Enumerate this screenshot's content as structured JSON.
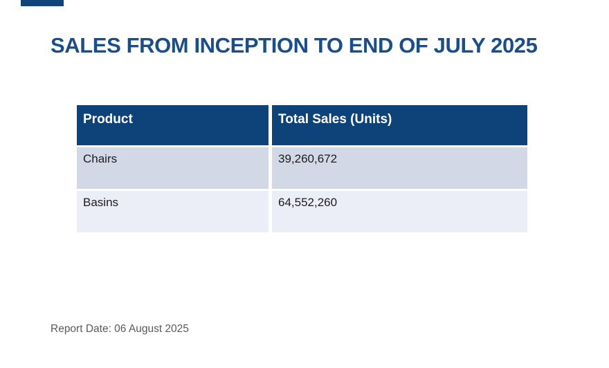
{
  "page": {
    "title": "SALES FROM INCEPTION TO END OF JULY 2025",
    "report_date": "Report Date: 06 August 2025"
  },
  "table": {
    "columns": [
      "Product",
      "Total Sales (Units)"
    ],
    "rows": [
      {
        "product": "Chairs",
        "total_sales": "39,260,672"
      },
      {
        "product": "Basins",
        "total_sales": "64,552,260"
      }
    ]
  },
  "colors": {
    "title_text": "#1A4E8A",
    "header_bg": "#0E4379",
    "header_text": "#FFFFFF",
    "row_odd_bg": "#D2D8E6",
    "row_even_bg": "#EBEEF6",
    "body_text": "#1B1B1B",
    "footer_text": "#595959",
    "accent_bar": "#0F4379",
    "page_bg": "#FFFFFF"
  }
}
